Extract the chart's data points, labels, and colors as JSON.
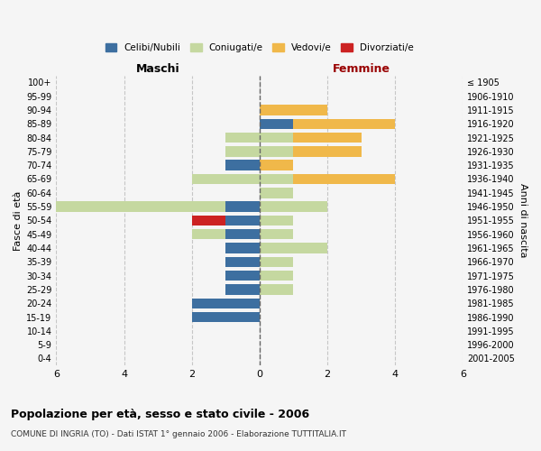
{
  "age_groups": [
    "100+",
    "95-99",
    "90-94",
    "85-89",
    "80-84",
    "75-79",
    "70-74",
    "65-69",
    "60-64",
    "55-59",
    "50-54",
    "45-49",
    "40-44",
    "35-39",
    "30-34",
    "25-29",
    "20-24",
    "15-19",
    "10-14",
    "5-9",
    "0-4"
  ],
  "birth_years": [
    "≤ 1905",
    "1906-1910",
    "1911-1915",
    "1916-1920",
    "1921-1925",
    "1926-1930",
    "1931-1935",
    "1936-1940",
    "1941-1945",
    "1946-1950",
    "1951-1955",
    "1956-1960",
    "1961-1965",
    "1966-1970",
    "1971-1975",
    "1976-1980",
    "1981-1985",
    "1986-1990",
    "1991-1995",
    "1996-2000",
    "2001-2005"
  ],
  "maschi": {
    "celibi": [
      0,
      0,
      0,
      0,
      0,
      0,
      1,
      0,
      0,
      1,
      1,
      1,
      1,
      1,
      1,
      1,
      2,
      2,
      0,
      0,
      0
    ],
    "coniugati": [
      0,
      0,
      0,
      0,
      1,
      1,
      0,
      2,
      0,
      5,
      0,
      1,
      0,
      0,
      0,
      0,
      0,
      0,
      0,
      0,
      0
    ],
    "vedovi": [
      0,
      0,
      0,
      0,
      0,
      0,
      0,
      0,
      0,
      0,
      0,
      0,
      0,
      0,
      0,
      0,
      0,
      0,
      0,
      0,
      0
    ],
    "divorziati": [
      0,
      0,
      0,
      0,
      0,
      0,
      0,
      0,
      0,
      0,
      1,
      0,
      0,
      0,
      0,
      0,
      0,
      0,
      0,
      0,
      0
    ]
  },
  "femmine": {
    "celibi": [
      0,
      0,
      0,
      1,
      0,
      0,
      0,
      0,
      0,
      0,
      0,
      0,
      0,
      0,
      0,
      0,
      0,
      0,
      0,
      0,
      0
    ],
    "coniugati": [
      0,
      0,
      0,
      0,
      1,
      1,
      0,
      1,
      1,
      2,
      1,
      1,
      2,
      1,
      1,
      1,
      0,
      0,
      0,
      0,
      0
    ],
    "vedovi": [
      0,
      0,
      2,
      3,
      2,
      2,
      1,
      3,
      0,
      0,
      0,
      0,
      0,
      0,
      0,
      0,
      0,
      0,
      0,
      0,
      0
    ],
    "divorziati": [
      0,
      0,
      0,
      0,
      0,
      0,
      0,
      0,
      0,
      0,
      0,
      0,
      0,
      0,
      0,
      0,
      0,
      0,
      0,
      0,
      0
    ]
  },
  "colors": {
    "celibi": "#3d6fa0",
    "coniugati": "#c5d8a0",
    "vedovi": "#f0b84a",
    "divorziati": "#cc2222"
  },
  "legend_labels": [
    "Celibi/Nubili",
    "Coniugati/e",
    "Vedovi/e",
    "Divorziati/e"
  ],
  "title": "Popolazione per età, sesso e stato civile - 2006",
  "subtitle": "COMUNE DI INGRIA (TO) - Dati ISTAT 1° gennaio 2006 - Elaborazione TUTTITALIA.IT",
  "ylabel_left": "Fasce di età",
  "ylabel_right": "Anni di nascita",
  "xlabel_left": "Maschi",
  "xlabel_right": "Femmine",
  "xlim": 6,
  "background_color": "#f5f5f5",
  "femmine_label_color": "#990000"
}
